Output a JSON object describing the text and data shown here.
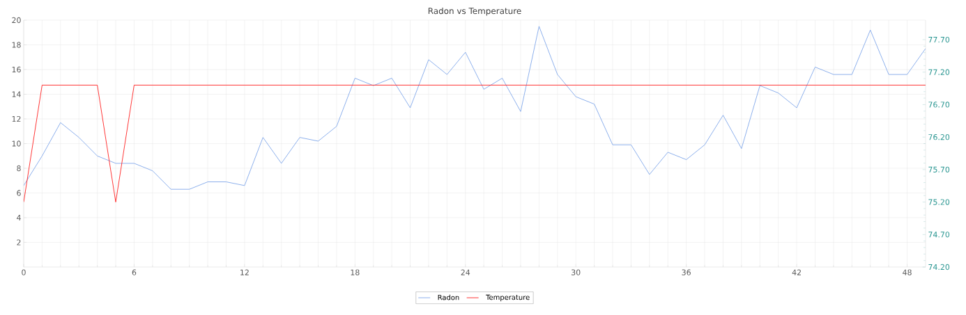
{
  "chart_data": {
    "type": "line",
    "title": "Radon vs Temperature",
    "x": [
      0,
      1,
      2,
      3,
      4,
      5,
      6,
      7,
      8,
      9,
      10,
      11,
      12,
      13,
      14,
      15,
      16,
      17,
      18,
      19,
      20,
      21,
      22,
      23,
      24,
      25,
      26,
      27,
      28,
      29,
      30,
      31,
      32,
      33,
      34,
      35,
      36,
      37,
      38,
      39,
      40,
      41,
      42,
      43,
      44,
      45,
      46,
      47,
      48,
      49
    ],
    "series": [
      {
        "name": "Radon",
        "color": "#7fa7ea",
        "values": [
          6.6,
          9.0,
          11.7,
          10.5,
          9.0,
          8.4,
          8.4,
          7.8,
          6.3,
          6.3,
          6.9,
          6.9,
          6.6,
          10.5,
          8.4,
          10.5,
          10.2,
          11.4,
          15.3,
          14.7,
          15.3,
          12.9,
          16.8,
          15.6,
          17.4,
          14.4,
          15.3,
          12.6,
          19.5,
          15.6,
          13.8,
          13.2,
          9.9,
          9.9,
          7.5,
          9.3,
          8.7,
          9.9,
          12.3,
          9.6,
          14.7,
          14.1,
          12.9,
          16.2,
          15.6,
          15.6,
          19.2,
          15.6,
          15.6,
          17.7
        ]
      },
      {
        "name": "Temperature",
        "color": "#ff2020",
        "axis": "y2",
        "values": [
          75.2,
          77.0,
          77.0,
          77.0,
          77.0,
          75.2,
          77.0,
          77.0,
          77.0,
          77.0,
          77.0,
          77.0,
          77.0,
          77.0,
          77.0,
          77.0,
          77.0,
          77.0,
          77.0,
          77.0,
          77.0,
          77.0,
          77.0,
          77.0,
          77.0,
          77.0,
          77.0,
          77.0,
          77.0,
          77.0,
          77.0,
          77.0,
          77.0,
          77.0,
          77.0,
          77.0,
          77.0,
          77.0,
          77.0,
          77.0,
          77.0,
          77.0,
          77.0,
          77.0,
          77.0,
          77.0,
          77.0,
          77.0,
          77.0,
          77.0
        ]
      }
    ],
    "xlim": [
      0,
      49
    ],
    "xticks": [
      0,
      6,
      12,
      18,
      24,
      30,
      36,
      42,
      48
    ],
    "ylim": [
      0,
      20
    ],
    "yticks": [
      2,
      4,
      6,
      8,
      10,
      12,
      14,
      16,
      18,
      20
    ],
    "y2lim": [
      74.2,
      78.0
    ],
    "y2ticks": [
      {
        "value": 74.2,
        "label": "74.20"
      },
      {
        "value": 74.7,
        "label": "74.70"
      },
      {
        "value": 75.2,
        "label": "75.20"
      },
      {
        "value": 75.7,
        "label": "75.70"
      },
      {
        "value": 76.2,
        "label": "76.20"
      },
      {
        "value": 76.7,
        "label": "76.70"
      },
      {
        "value": 77.2,
        "label": "77.20"
      },
      {
        "value": 77.7,
        "label": "77.70"
      }
    ],
    "grid": true,
    "legend": "bottom",
    "marker": "none",
    "line_style": "solid"
  }
}
